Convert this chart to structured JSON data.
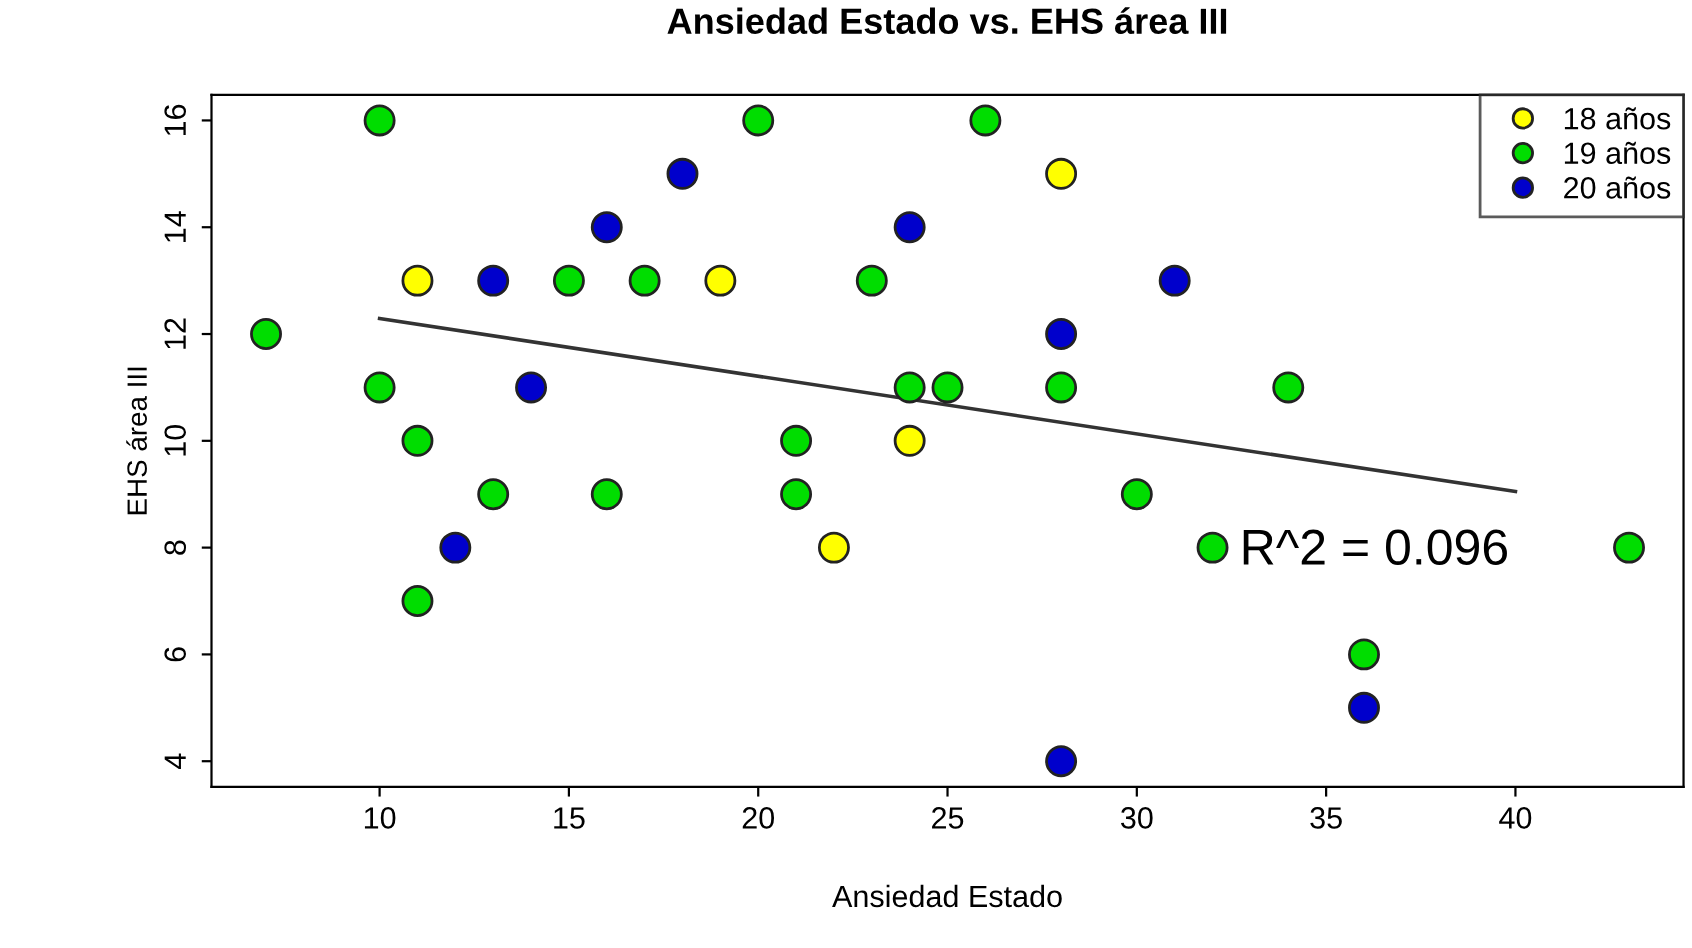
{
  "chart_data": {
    "type": "scatter",
    "title": "Ansiedad Estado vs. EHS área III",
    "xlabel": "Ansiedad Estado",
    "ylabel": "EHS área III",
    "series": [
      {
        "name": "18 años",
        "color": "#ffff00",
        "x": [
          11,
          19,
          24,
          22,
          28
        ],
        "values": [
          13,
          13,
          10,
          8,
          15
        ]
      },
      {
        "name": "19 años",
        "color": "#00dd00",
        "x": [
          10,
          20,
          26,
          15,
          17,
          23,
          7,
          10,
          24,
          25,
          28,
          34,
          11,
          21,
          13,
          16,
          21,
          30,
          11,
          32,
          43,
          36
        ],
        "values": [
          16,
          16,
          16,
          13,
          13,
          13,
          12,
          11,
          11,
          11,
          11,
          11,
          10,
          10,
          9,
          9,
          9,
          9,
          7,
          8,
          8,
          6
        ]
      },
      {
        "name": "20 años",
        "color": "#0000cc",
        "x": [
          18,
          16,
          24,
          13,
          31,
          28,
          14,
          12,
          36,
          28
        ],
        "values": [
          15,
          14,
          14,
          13,
          13,
          12,
          11,
          8,
          5,
          4
        ]
      },
      {
        "type": "line",
        "marker": "none",
        "color": "#333333",
        "x": [
          10,
          40
        ],
        "values": [
          12.29,
          9.05
        ]
      }
    ],
    "annotations": [
      "R^2 = 0.096"
    ],
    "xlim": [
      5.56,
      44.44
    ],
    "ylim": [
      3.52,
      16.48
    ],
    "xticks": [
      10,
      15,
      20,
      25,
      30,
      35,
      40
    ],
    "yticks": [
      4,
      6,
      8,
      10,
      12,
      14,
      16
    ],
    "marker": "circle",
    "legend": "top right",
    "grid": false
  }
}
